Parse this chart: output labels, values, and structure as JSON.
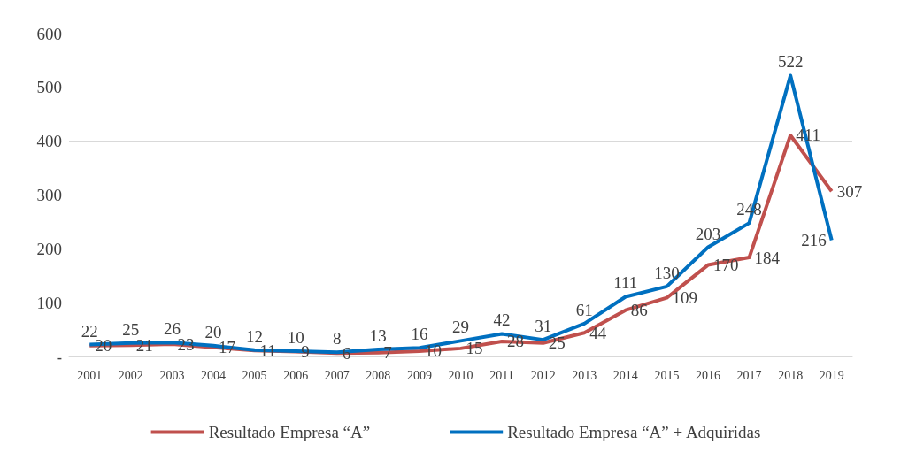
{
  "chart_data": {
    "type": "line",
    "categories": [
      "2001",
      "2002",
      "2003",
      "2004",
      "2005",
      "2006",
      "2007",
      "2008",
      "2009",
      "2010",
      "2011",
      "2012",
      "2013",
      "2014",
      "2015",
      "2016",
      "2017",
      "2018",
      "2019"
    ],
    "series": [
      {
        "name": "Resultado Empresa “A”",
        "color": "#c0504d",
        "values": [
          20,
          21,
          23,
          17,
          11,
          9,
          6,
          7,
          10,
          15,
          28,
          25,
          44,
          86,
          109,
          170,
          184,
          411,
          307
        ]
      },
      {
        "name": "Resultado Empresa “A” + Adquiridas",
        "color": "#0070c0",
        "values": [
          22,
          25,
          26,
          20,
          12,
          10,
          8,
          13,
          16,
          29,
          42,
          31,
          61,
          111,
          130,
          203,
          248,
          522,
          216
        ]
      }
    ],
    "ylim": [
      0,
      600
    ],
    "yticks": [
      {
        "value": 0,
        "label": "-"
      },
      100,
      200,
      300,
      400,
      500,
      600
    ],
    "grid": "y",
    "legend": "bottom",
    "data_labels": true,
    "marker": "none",
    "line_style": "solid"
  }
}
